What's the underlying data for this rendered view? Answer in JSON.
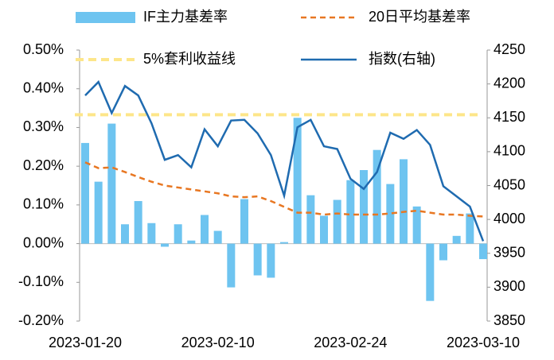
{
  "chart_data": {
    "type": "bar",
    "categories": [
      "2023-01-20",
      null,
      null,
      null,
      null,
      null,
      null,
      null,
      null,
      null,
      "2023-02-10",
      null,
      null,
      null,
      null,
      null,
      null,
      null,
      null,
      null,
      "2023-02-24",
      null,
      null,
      null,
      null,
      null,
      null,
      null,
      null,
      null,
      "2023-03-10"
    ],
    "series": [
      {
        "name": "IF主力基差率",
        "type": "bar",
        "color": "#6ec4f0",
        "values": [
          0.26,
          0.16,
          0.31,
          0.05,
          0.11,
          0.053,
          -0.008,
          0.05,
          0.008,
          0.074,
          0.033,
          -0.113,
          0.115,
          -0.082,
          -0.088,
          0.004,
          0.325,
          0.125,
          0.072,
          0.113,
          0.164,
          0.19,
          0.242,
          0.154,
          0.218,
          0.096,
          -0.148,
          -0.043,
          0.02,
          0.078,
          -0.04
        ]
      },
      {
        "name": "20日平均基差率",
        "type": "line",
        "dashed": true,
        "color": "#e87722",
        "values": [
          0.21,
          0.195,
          0.197,
          0.185,
          0.172,
          0.16,
          0.15,
          0.145,
          0.14,
          0.135,
          0.13,
          0.122,
          0.12,
          0.122,
          0.11,
          0.095,
          0.08,
          0.08,
          0.075,
          0.078,
          0.075,
          0.075,
          0.075,
          0.078,
          0.082,
          0.085,
          0.08,
          0.075,
          0.075,
          0.072,
          0.07
        ]
      },
      {
        "name": "指数(右轴)",
        "type": "line",
        "axis": "y2",
        "color": "#1f6bb0",
        "values": [
          4183,
          4203,
          4157,
          4197,
          4183,
          4142,
          4088,
          4095,
          4077,
          4133,
          4108,
          4146,
          4147,
          4127,
          4095,
          4035,
          4136,
          4147,
          4108,
          4104,
          4060,
          4045,
          4070,
          4128,
          4119,
          4132,
          4110,
          4049,
          4034,
          4019,
          3968
        ]
      }
    ],
    "reference_line": {
      "name": "5%套利收益线",
      "value": 0.333,
      "color": "#fde68a"
    },
    "ylim": [
      -0.2,
      0.5
    ],
    "yticks": [
      {
        "value": -0.2,
        "label": "-0.20%"
      },
      {
        "value": -0.1,
        "label": "-0.10%"
      },
      {
        "value": 0,
        "label": "0.00%"
      },
      {
        "value": 0.1,
        "label": "0.10%"
      },
      {
        "value": 0.2,
        "label": "0.20%"
      },
      {
        "value": 0.3,
        "label": "0.30%"
      },
      {
        "value": 0.4,
        "label": "0.40%"
      },
      {
        "value": 0.5,
        "label": "0.50%"
      }
    ],
    "y2lim": [
      3850,
      4250
    ],
    "y2ticks": [
      3850,
      3900,
      3950,
      4000,
      4050,
      4100,
      4150,
      4200,
      4250
    ]
  }
}
